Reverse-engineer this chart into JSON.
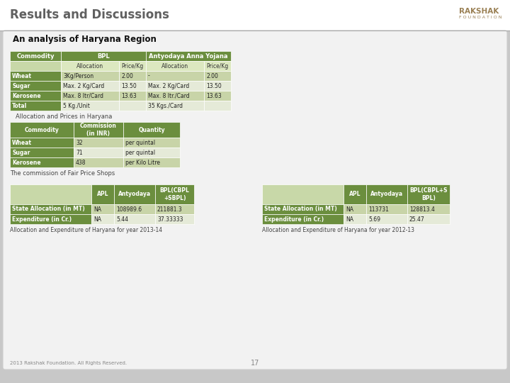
{
  "title": "Results and Discussions",
  "subtitle": "An analysis of Haryana Region",
  "header_color": "#6b8e3e",
  "header_text_color": "#ffffff",
  "row_alt0": "#c8d4a8",
  "row_alt1": "#e5ead8",
  "green_label": "#6b8e3e",
  "subheader_color": "#c8d8a8",
  "table1_rows": [
    [
      "Wheat",
      "3Kg/Person",
      "2.00",
      "-",
      "2.00"
    ],
    [
      "Sugar",
      "Max. 2 Kg/Card",
      "13.50",
      "Max. 2 Kg/Card",
      "13.50"
    ],
    [
      "Kerosene",
      "Max. 8 ltr/Card",
      "13.63",
      "Max. 8 ltr./Card",
      "13.63"
    ],
    [
      "Total",
      "5 Kg./Unit",
      "",
      "35 Kgs./Card",
      ""
    ]
  ],
  "table2_rows": [
    [
      "Wheat",
      "32",
      "per quintal"
    ],
    [
      "Sugar",
      "71",
      "per quintal"
    ],
    [
      "Kerosene",
      "438",
      "per Kilo Litre"
    ]
  ],
  "table3_rows": [
    [
      "State Allocation (in MT)",
      "NA",
      "108989.6",
      "211881.3"
    ],
    [
      "Expenditure (in Cr.)",
      "NA",
      "5.44",
      "37.33333"
    ]
  ],
  "table4_rows": [
    [
      "State Allocation (in MT)",
      "NA",
      "113731",
      "128813.4"
    ],
    [
      "Expenditure (in Cr.)",
      "NA",
      "5.69",
      "25.47"
    ]
  ],
  "rakshak_color": "#9a8054",
  "footer_text": "2013 Rakshak Foundation. All Rights Reserved.",
  "page_number": "17"
}
